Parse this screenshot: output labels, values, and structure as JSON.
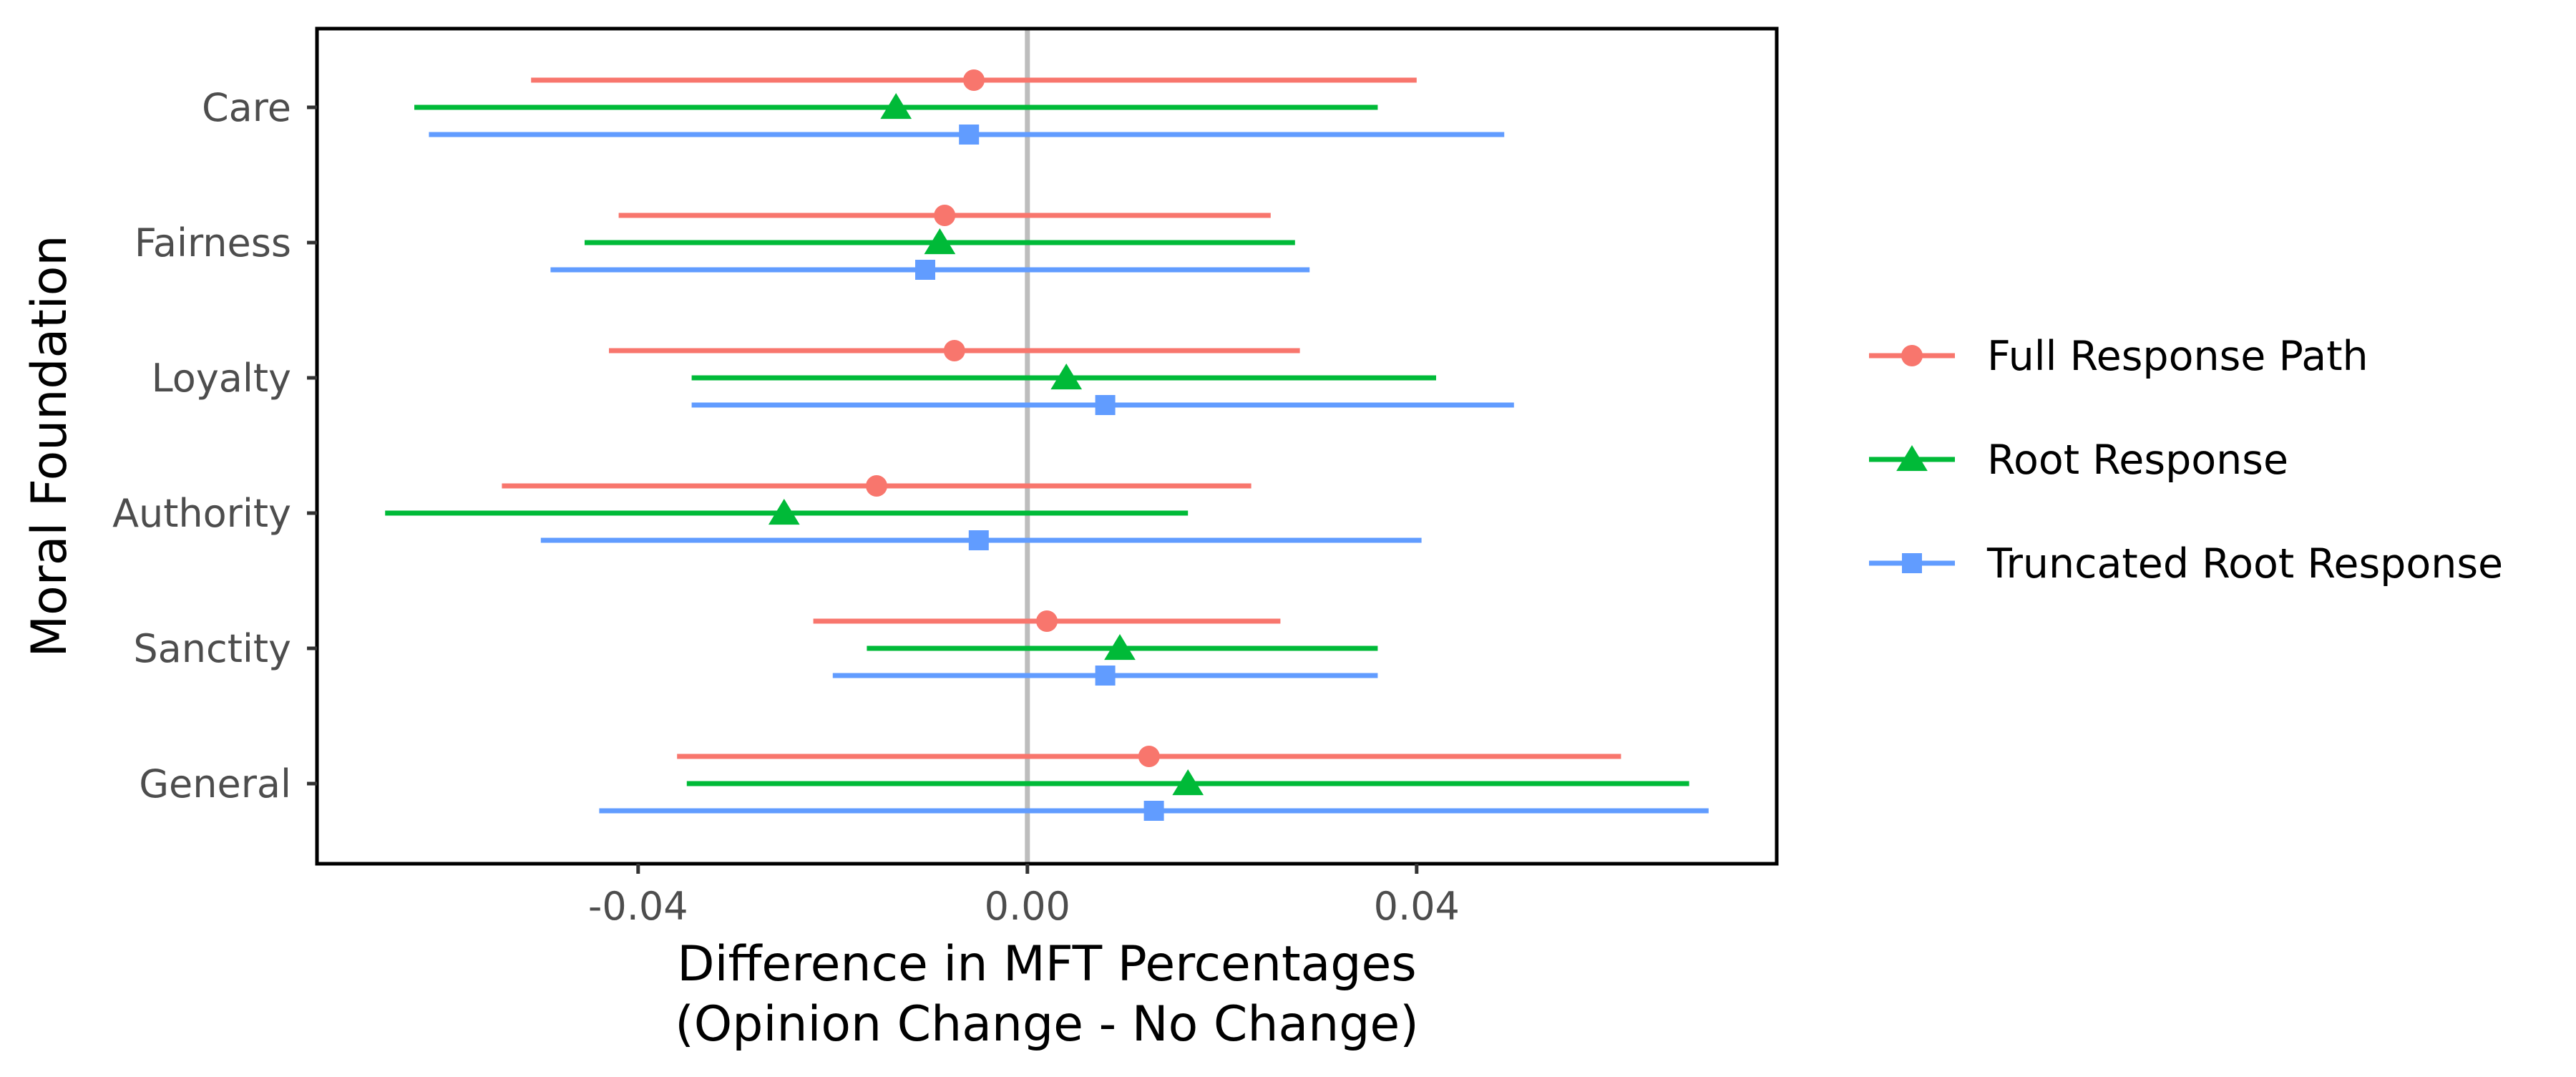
{
  "chart_data": {
    "type": "forest",
    "ylabel": "Moral Foundation",
    "xlabel_lines": [
      "Difference in MFT Percentages",
      "(Opinion Change - No Change)"
    ],
    "categories": [
      "Care",
      "Fairness",
      "Loyalty",
      "Authority",
      "Sanctity",
      "General"
    ],
    "xlim": [
      -0.073,
      0.077
    ],
    "x_ticks": [
      -0.04,
      0.0,
      0.04
    ],
    "x_tick_labels": [
      "-0.04",
      "0.00",
      "0.04"
    ],
    "reference_line_x": 0.0,
    "grid": false,
    "legend_position": "right",
    "series": [
      {
        "name": "Full Response Path",
        "color": "#F8766D",
        "marker": "circle",
        "points": [
          {
            "estimate": -0.0055,
            "low": -0.051,
            "high": 0.04
          },
          {
            "estimate": -0.0085,
            "low": -0.042,
            "high": 0.025
          },
          {
            "estimate": -0.0075,
            "low": -0.043,
            "high": 0.028
          },
          {
            "estimate": -0.0155,
            "low": -0.054,
            "high": 0.023
          },
          {
            "estimate": 0.002,
            "low": -0.022,
            "high": 0.026
          },
          {
            "estimate": 0.0125,
            "low": -0.036,
            "high": 0.061
          }
        ]
      },
      {
        "name": "Root Response",
        "color": "#00BA38",
        "marker": "triangle",
        "points": [
          {
            "estimate": -0.0135,
            "low": -0.063,
            "high": 0.036
          },
          {
            "estimate": -0.009,
            "low": -0.0455,
            "high": 0.0275
          },
          {
            "estimate": 0.004,
            "low": -0.0345,
            "high": 0.042
          },
          {
            "estimate": -0.025,
            "low": -0.066,
            "high": 0.0165
          },
          {
            "estimate": 0.0095,
            "low": -0.0165,
            "high": 0.036
          },
          {
            "estimate": 0.0165,
            "low": -0.035,
            "high": 0.068
          }
        ]
      },
      {
        "name": "Truncated Root Response",
        "color": "#619CFF",
        "marker": "square",
        "points": [
          {
            "estimate": -0.006,
            "low": -0.0615,
            "high": 0.049
          },
          {
            "estimate": -0.0105,
            "low": -0.049,
            "high": 0.029
          },
          {
            "estimate": 0.008,
            "low": -0.0345,
            "high": 0.05
          },
          {
            "estimate": -0.005,
            "low": -0.05,
            "high": 0.0405
          },
          {
            "estimate": 0.008,
            "low": -0.02,
            "high": 0.036
          },
          {
            "estimate": 0.013,
            "low": -0.044,
            "high": 0.07
          }
        ]
      }
    ]
  }
}
